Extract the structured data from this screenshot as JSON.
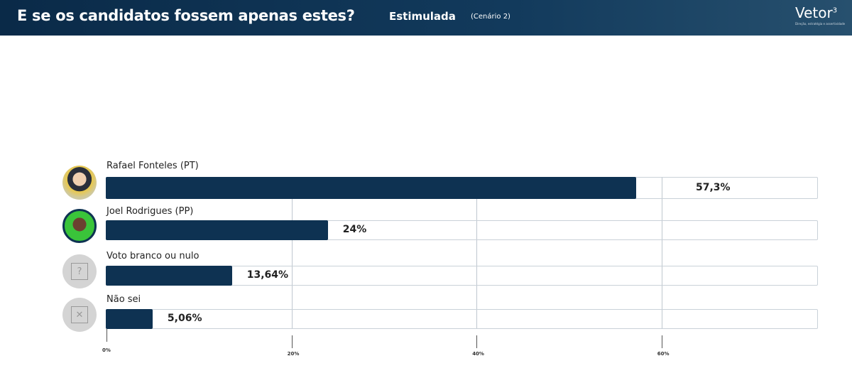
{
  "header": {
    "title": "E se os candidatos fossem apenas estes?",
    "subtitle": "Estimulada",
    "scenario": "(Cenário 2)",
    "logo": "Vetor",
    "logo_sup": "3",
    "tagline": "Direção, estratégia e assertividade"
  },
  "colors": {
    "bar": "#0e3252",
    "header": "#0a2a48"
  },
  "chart_data": {
    "type": "bar",
    "orientation": "horizontal",
    "categories": [
      "Rafael Fonteles (PT)",
      "Joel Rodrigues (PP)",
      "Voto branco ou nulo",
      "Não sei"
    ],
    "values": [
      57.3,
      24,
      13.64,
      5.06
    ],
    "value_labels": [
      "57,3%",
      "24%",
      "13,64%",
      "5,06%"
    ],
    "xticks": [
      "0%",
      "20%",
      "40%",
      "60%"
    ],
    "xlim": [
      0,
      77
    ],
    "grid": true
  }
}
